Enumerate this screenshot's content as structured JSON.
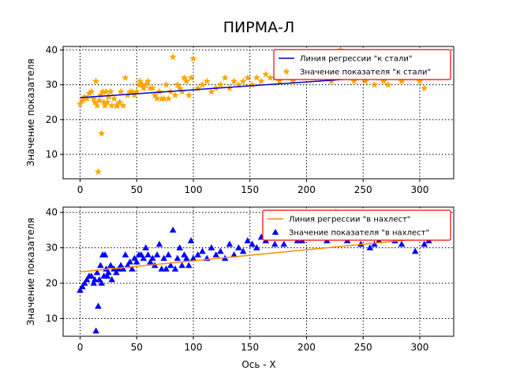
{
  "figure": {
    "title": "ПИРМА-Л",
    "xlabel": "Ось - X",
    "colors": {
      "red": "#ff0000",
      "grid": "#000000"
    }
  },
  "chart_data": [
    {
      "type": "scatter",
      "ylabel": "Значение показателя",
      "xlim": [
        -15,
        330
      ],
      "ylim": [
        3,
        41
      ],
      "xticks": [
        0,
        50,
        100,
        150,
        200,
        250,
        300
      ],
      "yticks": [
        10,
        20,
        30,
        40
      ],
      "grid": true,
      "legend_position": "top-right",
      "regression": {
        "name": "Линия регрессии \"к стали\"",
        "color": "#0000cc",
        "x": [
          0,
          320
        ],
        "y": [
          26.3,
          33.5
        ]
      },
      "series": {
        "name": "Значение показателя \"к стали\"",
        "marker": "star",
        "color": "#ffa500",
        "x": [
          0,
          2,
          4,
          6,
          8,
          10,
          12,
          13,
          14,
          15,
          16,
          17,
          18,
          19,
          20,
          21,
          22,
          23,
          24,
          25,
          27,
          28,
          30,
          32,
          33,
          35,
          36,
          38,
          40,
          42,
          44,
          46,
          48,
          50,
          52,
          53,
          54,
          55,
          56,
          58,
          60,
          62,
          64,
          66,
          68,
          70,
          72,
          74,
          76,
          78,
          80,
          82,
          84,
          86,
          88,
          90,
          92,
          94,
          96,
          98,
          100,
          104,
          108,
          112,
          116,
          120,
          124,
          128,
          132,
          136,
          140,
          144,
          148,
          152,
          156,
          160,
          164,
          168,
          172,
          176,
          180,
          184,
          188,
          192,
          196,
          200,
          206,
          212,
          218,
          222,
          226,
          230,
          236,
          242,
          248,
          252,
          256,
          260,
          264,
          268,
          272,
          278,
          284,
          290,
          296,
          300,
          304,
          308,
          312,
          318
        ],
        "y": [
          24.5,
          25.5,
          26.5,
          26,
          27.5,
          28,
          26,
          25,
          31,
          24,
          5,
          25.5,
          27,
          16,
          28,
          25,
          24,
          28,
          25,
          26.5,
          28,
          24,
          26,
          24,
          24,
          25,
          28,
          24,
          32,
          27,
          28,
          28,
          27,
          28,
          30,
          31,
          30,
          30,
          29,
          30,
          31,
          29,
          29,
          27,
          26,
          28,
          26,
          26,
          30,
          26,
          28,
          38,
          27,
          30,
          29,
          28,
          32,
          31,
          27,
          32,
          37.5,
          29,
          30,
          31,
          28,
          29,
          30,
          32,
          29,
          31,
          30,
          31,
          32,
          30,
          32,
          31,
          33,
          32,
          32,
          31,
          33,
          32,
          31,
          34,
          33,
          33,
          32,
          33,
          33,
          31,
          34,
          40,
          32,
          31,
          33,
          31,
          33,
          30,
          32,
          31,
          30,
          33,
          31,
          32,
          32,
          31,
          29,
          32,
          33,
          32
        ]
      }
    },
    {
      "type": "scatter",
      "ylabel": "Значение показателя",
      "xlim": [
        -15,
        330
      ],
      "ylim": [
        5,
        41.5
      ],
      "xticks": [
        0,
        50,
        100,
        150,
        200,
        250,
        300
      ],
      "yticks": [
        10,
        20,
        30,
        40
      ],
      "grid": true,
      "legend_position": "top-right",
      "regression": {
        "name": "Линия регрессии \"в нахлест\"",
        "color": "#ff8c00",
        "x": [
          0,
          320
        ],
        "y": [
          23.2,
          33.2
        ]
      },
      "series": {
        "name": "Значение показателя \"в нахлест\"",
        "marker": "triangle",
        "color": "#0000ff",
        "x": [
          0,
          2,
          4,
          6,
          8,
          10,
          12,
          13,
          14,
          15,
          16,
          17,
          18,
          19,
          20,
          21,
          22,
          23,
          24,
          25,
          27,
          28,
          30,
          32,
          34,
          36,
          38,
          40,
          42,
          44,
          46,
          48,
          50,
          52,
          54,
          56,
          58,
          60,
          62,
          64,
          66,
          68,
          70,
          72,
          74,
          76,
          78,
          80,
          82,
          84,
          86,
          88,
          90,
          92,
          94,
          96,
          98,
          100,
          104,
          108,
          112,
          116,
          120,
          124,
          128,
          132,
          136,
          140,
          144,
          148,
          152,
          156,
          160,
          164,
          168,
          172,
          176,
          180,
          184,
          188,
          192,
          196,
          200,
          206,
          212,
          218,
          222,
          226,
          230,
          236,
          242,
          248,
          252,
          256,
          260,
          264,
          268,
          272,
          278,
          284,
          290,
          296,
          300,
          304,
          308,
          312,
          318
        ],
        "y": [
          18,
          19,
          20,
          21,
          22,
          22,
          20,
          21,
          6.5,
          23,
          13.5,
          21,
          25,
          20,
          28,
          22,
          28,
          24,
          22,
          23,
          25,
          21,
          24,
          23,
          24,
          25,
          24,
          28,
          25,
          26,
          24,
          27,
          26,
          28,
          28,
          27,
          30,
          28,
          26,
          27,
          25,
          28,
          31,
          24,
          27,
          24,
          28,
          25,
          35,
          24,
          27,
          30,
          25,
          28,
          27,
          25,
          32,
          27,
          28,
          29,
          27,
          30,
          28,
          29,
          27,
          31,
          28,
          30,
          29,
          32,
          31,
          30,
          33,
          32,
          34,
          31,
          33,
          31,
          34,
          33,
          32,
          32,
          33,
          33,
          34,
          32,
          33,
          40,
          33,
          32,
          34,
          31,
          33,
          30,
          31,
          32,
          34,
          33,
          32,
          31,
          33,
          29,
          34,
          31,
          32,
          34,
          33
        ]
      }
    }
  ]
}
